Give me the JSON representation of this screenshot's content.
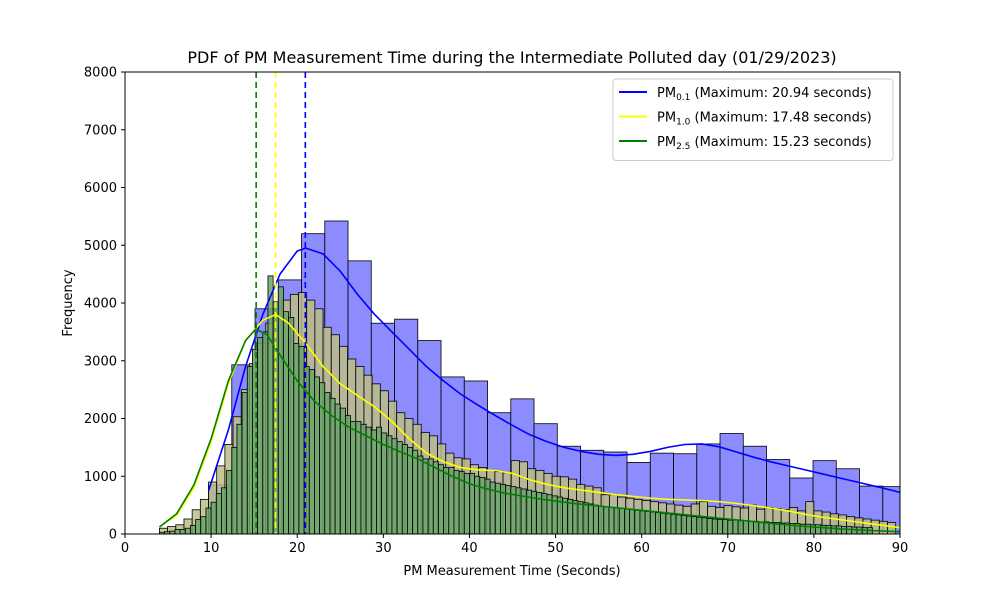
{
  "chart_data": {
    "type": "histogram-kde",
    "title": "PDF of PM Measurement Time during the Intermediate Polluted day (01/29/2023)",
    "xlabel": "PM Measurement Time (Seconds)",
    "ylabel": "Frequency",
    "xlim": [
      0,
      90
    ],
    "ylim": [
      0,
      8000
    ],
    "xticks": [
      0,
      10,
      20,
      30,
      40,
      50,
      60,
      70,
      80,
      90
    ],
    "yticks": [
      0,
      1000,
      2000,
      3000,
      4000,
      5000,
      6000,
      7000,
      8000
    ],
    "grid": false,
    "legend_position": "upper right",
    "series": [
      {
        "name_main": "PM",
        "name_sub": "0.1",
        "name_suffix": " (Maximum: 20.94 seconds)",
        "color": "#0000ff",
        "bar_fill": "#8080ff",
        "bins": {
          "start": 9.7,
          "width": 2.7,
          "values": [
            850,
            2930,
            3900,
            4400,
            5200,
            5420,
            4730,
            3650,
            3720,
            3350,
            2720,
            2650,
            2100,
            2340,
            1910,
            1520,
            1450,
            1420,
            1240,
            1400,
            1390,
            1560,
            1740,
            1520,
            1290,
            970,
            1270,
            1130,
            830,
            820,
            860,
            730
          ]
        },
        "peak": 20.94,
        "kde": [
          [
            9.7,
            750
          ],
          [
            12,
            1800
          ],
          [
            14,
            2900
          ],
          [
            16,
            3800
          ],
          [
            18,
            4500
          ],
          [
            20,
            4900
          ],
          [
            21,
            4950
          ],
          [
            23,
            4850
          ],
          [
            25,
            4550
          ],
          [
            27,
            4150
          ],
          [
            29,
            3800
          ],
          [
            31,
            3500
          ],
          [
            33,
            3200
          ],
          [
            35,
            2900
          ],
          [
            37,
            2650
          ],
          [
            39,
            2420
          ],
          [
            41,
            2230
          ],
          [
            43,
            2050
          ],
          [
            45,
            1880
          ],
          [
            47,
            1720
          ],
          [
            49,
            1600
          ],
          [
            51,
            1500
          ],
          [
            53,
            1430
          ],
          [
            55,
            1380
          ],
          [
            57,
            1360
          ],
          [
            59,
            1380
          ],
          [
            61,
            1430
          ],
          [
            63,
            1500
          ],
          [
            65,
            1550
          ],
          [
            67,
            1560
          ],
          [
            69,
            1510
          ],
          [
            71,
            1420
          ],
          [
            73,
            1330
          ],
          [
            75,
            1250
          ],
          [
            77,
            1180
          ],
          [
            79,
            1110
          ],
          [
            81,
            1040
          ],
          [
            83,
            970
          ],
          [
            85,
            900
          ],
          [
            87,
            830
          ],
          [
            89,
            760
          ],
          [
            90,
            720
          ]
        ]
      },
      {
        "name_main": "PM",
        "name_sub": "1.0",
        "name_suffix": " (Maximum: 17.48 seconds)",
        "color": "#ffff00",
        "bar_fill": "#bdbd87",
        "bins": {
          "start": 4.0,
          "width": 0.95,
          "values": [
            100,
            130,
            160,
            260,
            420,
            600,
            900,
            1180,
            1550,
            2030,
            2500,
            2950,
            3300,
            3650,
            3900,
            4050,
            4150,
            4180,
            4050,
            3900,
            3580,
            3450,
            3250,
            3030,
            2900,
            2750,
            2600,
            2480,
            2300,
            2100,
            2000,
            1900,
            1760,
            1700,
            1560,
            1400,
            1320,
            1300,
            1200,
            1150,
            1110,
            1080,
            1060,
            1270,
            1250,
            1130,
            1100,
            1050,
            1000,
            990,
            950,
            860,
            830,
            800,
            680,
            680,
            640,
            620,
            600,
            580,
            560,
            540,
            520,
            500,
            480,
            520,
            560,
            480,
            460,
            490,
            470,
            450,
            500,
            430,
            460,
            440,
            420,
            460,
            400,
            560,
            400,
            380,
            350,
            330,
            300,
            280,
            260,
            240,
            220,
            200
          ]
        },
        "peak": 17.48,
        "kde": [
          [
            4,
            130
          ],
          [
            6,
            320
          ],
          [
            8,
            800
          ],
          [
            10,
            1600
          ],
          [
            12,
            2600
          ],
          [
            14,
            3350
          ],
          [
            16,
            3700
          ],
          [
            17.5,
            3800
          ],
          [
            19,
            3650
          ],
          [
            21,
            3300
          ],
          [
            23,
            2900
          ],
          [
            25,
            2600
          ],
          [
            27,
            2400
          ],
          [
            29,
            2200
          ],
          [
            31,
            1950
          ],
          [
            33,
            1650
          ],
          [
            35,
            1400
          ],
          [
            37,
            1250
          ],
          [
            39,
            1150
          ],
          [
            41,
            1110
          ],
          [
            43,
            1100
          ],
          [
            45,
            1050
          ],
          [
            47,
            940
          ],
          [
            49,
            860
          ],
          [
            51,
            800
          ],
          [
            53,
            760
          ],
          [
            55,
            720
          ],
          [
            57,
            680
          ],
          [
            59,
            650
          ],
          [
            61,
            620
          ],
          [
            63,
            600
          ],
          [
            65,
            590
          ],
          [
            67,
            580
          ],
          [
            69,
            560
          ],
          [
            71,
            530
          ],
          [
            73,
            490
          ],
          [
            75,
            450
          ],
          [
            77,
            400
          ],
          [
            79,
            340
          ],
          [
            81,
            290
          ],
          [
            83,
            250
          ],
          [
            85,
            210
          ],
          [
            87,
            170
          ],
          [
            89,
            130
          ],
          [
            90,
            110
          ]
        ]
      },
      {
        "name_main": "PM",
        "name_sub": "2.5",
        "name_suffix": " (Maximum: 15.23 seconds)",
        "color": "#008000",
        "bar_fill": "#6aa66a",
        "bins": {
          "start": 4.0,
          "width": 0.6,
          "values": [
            30,
            40,
            50,
            80,
            80,
            100,
            150,
            250,
            300,
            450,
            550,
            700,
            800,
            1100,
            1500,
            1900,
            2450,
            2900,
            3200,
            3400,
            3500,
            4470,
            4020,
            4280,
            3850,
            3750,
            3300,
            3250,
            2900,
            2850,
            2720,
            2620,
            2450,
            2350,
            2250,
            2180,
            2050,
            1950,
            1950,
            1900,
            1850,
            1800,
            1850,
            1750,
            1700,
            1650,
            1600,
            1550,
            1500,
            1450,
            1350,
            1300,
            1300,
            1250,
            1200,
            1150,
            1150,
            1100,
            1080,
            1050,
            1050,
            1000,
            980,
            950,
            900,
            880,
            860,
            840,
            820,
            800,
            780,
            760,
            740,
            720,
            700,
            680,
            660,
            640,
            620,
            600,
            580,
            560,
            540,
            520,
            500,
            480,
            470,
            460,
            450,
            440,
            430,
            420,
            410,
            400,
            390,
            380,
            370,
            360,
            350,
            340,
            330,
            320,
            310,
            300,
            290,
            280,
            270,
            260,
            250,
            250,
            240,
            240,
            230,
            230,
            220,
            220,
            210,
            210,
            200,
            200,
            190,
            190,
            180,
            180,
            170,
            170,
            160,
            160,
            150,
            150,
            140,
            140,
            130,
            130,
            120,
            120,
            110,
            110
          ]
        },
        "peak": 15.23,
        "kde": [
          [
            4,
            120
          ],
          [
            6,
            350
          ],
          [
            8,
            850
          ],
          [
            10,
            1650
          ],
          [
            12,
            2650
          ],
          [
            14,
            3350
          ],
          [
            15.2,
            3550
          ],
          [
            16.5,
            3450
          ],
          [
            18,
            3100
          ],
          [
            20,
            2650
          ],
          [
            22,
            2300
          ],
          [
            24,
            2050
          ],
          [
            26,
            1850
          ],
          [
            28,
            1700
          ],
          [
            30,
            1550
          ],
          [
            32,
            1420
          ],
          [
            34,
            1300
          ],
          [
            36,
            1150
          ],
          [
            38,
            1000
          ],
          [
            40,
            870
          ],
          [
            42,
            780
          ],
          [
            44,
            710
          ],
          [
            46,
            660
          ],
          [
            48,
            610
          ],
          [
            50,
            570
          ],
          [
            52,
            530
          ],
          [
            54,
            500
          ],
          [
            56,
            470
          ],
          [
            58,
            440
          ],
          [
            60,
            410
          ],
          [
            62,
            380
          ],
          [
            64,
            350
          ],
          [
            66,
            320
          ],
          [
            68,
            290
          ],
          [
            70,
            260
          ],
          [
            72,
            230
          ],
          [
            74,
            200
          ],
          [
            76,
            170
          ],
          [
            78,
            145
          ],
          [
            80,
            120
          ],
          [
            82,
            100
          ],
          [
            84,
            80
          ],
          [
            86,
            65
          ],
          [
            88,
            50
          ],
          [
            90,
            40
          ]
        ]
      }
    ]
  }
}
